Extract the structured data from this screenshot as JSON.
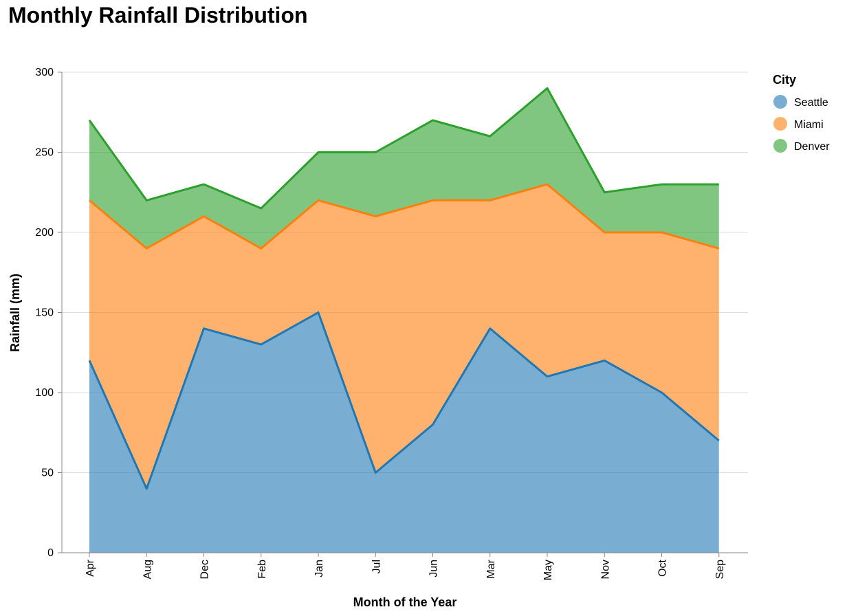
{
  "chart_data": {
    "type": "area",
    "stacked": true,
    "title": "Monthly Rainfall Distribution",
    "xlabel": "Month of the Year",
    "ylabel": "Rainfall (mm)",
    "ylim": [
      0,
      300
    ],
    "yticks": [
      0,
      50,
      100,
      150,
      200,
      250,
      300
    ],
    "grid": true,
    "legend_title": "City",
    "legend_position": "right",
    "categories": [
      "Apr",
      "Aug",
      "Dec",
      "Feb",
      "Jan",
      "Jul",
      "Jun",
      "Mar",
      "May",
      "Nov",
      "Oct",
      "Sep"
    ],
    "series": [
      {
        "name": "Seattle",
        "color": "#1f77b4",
        "values": [
          120,
          40,
          140,
          130,
          150,
          50,
          80,
          140,
          110,
          120,
          100,
          70
        ]
      },
      {
        "name": "Miami",
        "color": "#ff7f0e",
        "values": [
          100,
          150,
          70,
          60,
          70,
          160,
          140,
          80,
          120,
          80,
          100,
          120
        ]
      },
      {
        "name": "Denver",
        "color": "#2ca02c",
        "values": [
          50,
          30,
          20,
          25,
          30,
          40,
          50,
          40,
          60,
          25,
          30,
          40
        ]
      }
    ]
  }
}
